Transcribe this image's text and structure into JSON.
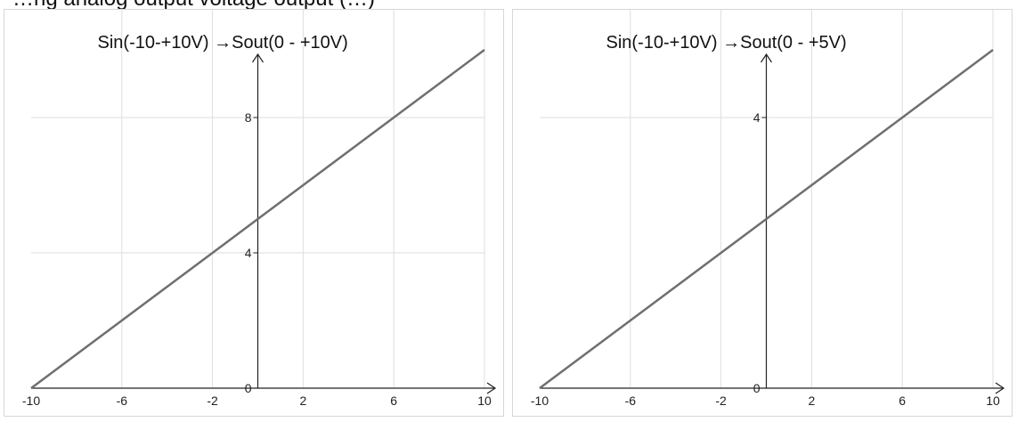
{
  "header_text": "…ng analog output voltage output (…)",
  "colors": {
    "grid": "#dedede",
    "axis": "#222222",
    "line": "#6f6f6f",
    "border": "#d7d7d7"
  },
  "chart_data": [
    {
      "type": "line",
      "title": "Sin(-10-+10V) →Sout(0 - +10V)",
      "xlabel": "",
      "ylabel": "",
      "xlim": [
        -10,
        10
      ],
      "ylim": [
        0,
        10
      ],
      "x_ticks": [
        -10,
        -6,
        -2,
        2,
        6,
        10
      ],
      "y_ticks": [
        0,
        4,
        8
      ],
      "grid": true,
      "series": [
        {
          "x": [
            -10,
            10
          ],
          "y": [
            0,
            10
          ]
        }
      ]
    },
    {
      "type": "line",
      "title": "Sin(-10-+10V) →Sout(0 - +5V)",
      "xlabel": "",
      "ylabel": "",
      "xlim": [
        -10,
        10
      ],
      "ylim": [
        0,
        5
      ],
      "x_ticks": [
        -10,
        -6,
        -2,
        2,
        6,
        10
      ],
      "y_ticks": [
        0,
        4
      ],
      "grid": true,
      "series": [
        {
          "x": [
            -10,
            10
          ],
          "y": [
            0,
            5
          ]
        }
      ]
    }
  ]
}
